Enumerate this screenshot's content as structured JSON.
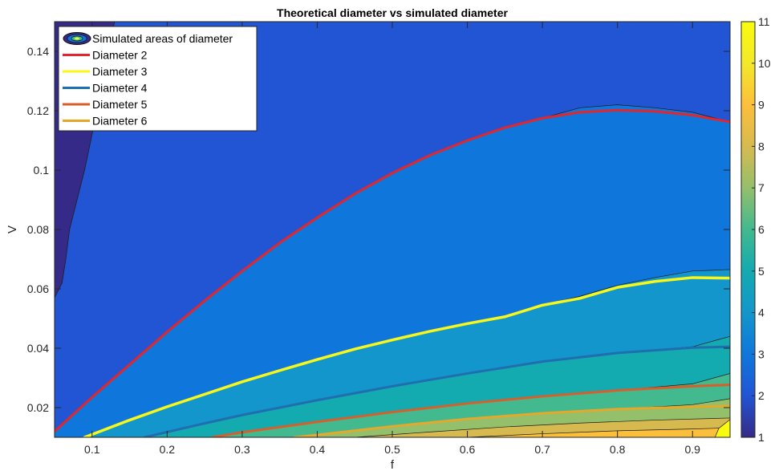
{
  "chart_data": {
    "type": "contour",
    "title": "Theoretical diameter vs simulated diameter",
    "xlabel": "f",
    "ylabel": "V",
    "xlim": [
      0.05,
      0.95
    ],
    "ylim": [
      0.01,
      0.15
    ],
    "x_ticks": [
      0.1,
      0.2,
      0.3,
      0.4,
      0.5,
      0.6,
      0.7,
      0.8,
      0.9
    ],
    "y_ticks": [
      0.02,
      0.04,
      0.06,
      0.08,
      0.1,
      0.12,
      0.14
    ],
    "colorbar": {
      "min": 1,
      "max": 11,
      "ticks": [
        1,
        2,
        3,
        4,
        5,
        6,
        7,
        8,
        9,
        10,
        11
      ],
      "colormap": "parula",
      "stops": [
        "#352a87",
        "#2155d4",
        "#0f77db",
        "#1396cc",
        "#13aab0",
        "#42b98e",
        "#94bf6b",
        "#d7ba4f",
        "#fcbf3c",
        "#f3e829",
        "#f9fb0e"
      ]
    },
    "legend": {
      "placement": "top-left",
      "entries": [
        "Simulated areas of diameter",
        "Diameter 2",
        "Diameter 3",
        "Diameter 4",
        "Diameter 5",
        "Diameter 6"
      ]
    },
    "series": [
      {
        "name": "Diameter 2",
        "color": "#e2262b",
        "x": [
          0.05,
          0.1,
          0.15,
          0.2,
          0.25,
          0.3,
          0.35,
          0.4,
          0.45,
          0.5,
          0.55,
          0.6,
          0.65,
          0.7,
          0.75,
          0.8,
          0.85,
          0.9,
          0.95
        ],
        "y": [
          0.012,
          0.0235,
          0.0345,
          0.0455,
          0.056,
          0.066,
          0.0755,
          0.084,
          0.092,
          0.099,
          0.105,
          0.11,
          0.1143,
          0.1175,
          0.1195,
          0.1202,
          0.1198,
          0.1185,
          0.1162
        ]
      },
      {
        "name": "Diameter 3",
        "color": "#f7f71c",
        "x": [
          0.09,
          0.15,
          0.2,
          0.25,
          0.3,
          0.35,
          0.4,
          0.45,
          0.5,
          0.55,
          0.6,
          0.65,
          0.7,
          0.75,
          0.8,
          0.85,
          0.9,
          0.95
        ],
        "y": [
          0.01,
          0.0158,
          0.0203,
          0.0245,
          0.0287,
          0.0325,
          0.0362,
          0.0397,
          0.0428,
          0.0457,
          0.0483,
          0.0506,
          0.0545,
          0.0568,
          0.0605,
          0.0625,
          0.0638,
          0.0636
        ]
      },
      {
        "name": "Diameter 4",
        "color": "#1f6fb0",
        "x": [
          0.17,
          0.25,
          0.3,
          0.4,
          0.5,
          0.6,
          0.7,
          0.8,
          0.9,
          0.95
        ],
        "y": [
          0.01,
          0.0147,
          0.0175,
          0.0225,
          0.0272,
          0.0315,
          0.0355,
          0.0384,
          0.0402,
          0.0405
        ]
      },
      {
        "name": "Diameter 5",
        "color": "#d65f2b",
        "x": [
          0.26,
          0.3,
          0.4,
          0.5,
          0.6,
          0.7,
          0.8,
          0.9,
          0.95
        ],
        "y": [
          0.01,
          0.0117,
          0.0152,
          0.0185,
          0.0214,
          0.0238,
          0.0258,
          0.0272,
          0.0277
        ]
      },
      {
        "name": "Diameter 6",
        "color": "#e6a82b",
        "x": [
          0.37,
          0.4,
          0.5,
          0.6,
          0.7,
          0.8,
          0.9,
          0.95
        ],
        "y": [
          0.01,
          0.0108,
          0.0137,
          0.0162,
          0.0181,
          0.0195,
          0.0203,
          0.0205
        ]
      }
    ],
    "regions": [
      {
        "level": 1,
        "color": "#352a87",
        "boundary_x": [
          0.05,
          0.05,
          0.06,
          0.065,
          0.07,
          0.08,
          0.09,
          0.1,
          0.11,
          0.12,
          0.13
        ],
        "boundary_y": [
          0.048,
          0.057,
          0.062,
          0.07,
          0.08,
          0.09,
          0.1,
          0.112,
          0.125,
          0.138,
          0.15
        ]
      },
      {
        "level": 3,
        "color": "#0f77db",
        "boundary_x": [
          0.05,
          0.1,
          0.15,
          0.2,
          0.25,
          0.3,
          0.35,
          0.4,
          0.45,
          0.5,
          0.55,
          0.6,
          0.65,
          0.7,
          0.75,
          0.8,
          0.85,
          0.9,
          0.95
        ],
        "boundary_y": [
          0.012,
          0.0235,
          0.0345,
          0.0455,
          0.056,
          0.066,
          0.0755,
          0.084,
          0.092,
          0.099,
          0.105,
          0.11,
          0.1143,
          0.1175,
          0.121,
          0.122,
          0.121,
          0.1195,
          0.1162
        ]
      },
      {
        "level": 4,
        "color": "#1396cc",
        "boundary_x": [
          0.09,
          0.15,
          0.2,
          0.25,
          0.3,
          0.35,
          0.4,
          0.45,
          0.5,
          0.55,
          0.6,
          0.65,
          0.7,
          0.75,
          0.8,
          0.85,
          0.9,
          0.95
        ],
        "boundary_y": [
          0.01,
          0.0158,
          0.0203,
          0.0245,
          0.0287,
          0.0325,
          0.0362,
          0.0397,
          0.0428,
          0.0457,
          0.0483,
          0.0506,
          0.0545,
          0.0575,
          0.0612,
          0.0638,
          0.066,
          0.0665
        ]
      },
      {
        "level": 5,
        "color": "#13aab0",
        "boundary_x": [
          0.17,
          0.25,
          0.3,
          0.4,
          0.5,
          0.6,
          0.7,
          0.8,
          0.9,
          0.95
        ],
        "boundary_y": [
          0.01,
          0.0147,
          0.0175,
          0.0225,
          0.0272,
          0.0315,
          0.0355,
          0.0385,
          0.0405,
          0.044
        ]
      },
      {
        "level": 6,
        "color": "#42b98e",
        "boundary_x": [
          0.26,
          0.3,
          0.4,
          0.5,
          0.6,
          0.7,
          0.8,
          0.9,
          0.95
        ],
        "boundary_y": [
          0.01,
          0.0117,
          0.0152,
          0.0185,
          0.0214,
          0.0238,
          0.0258,
          0.028,
          0.0315
        ]
      },
      {
        "level": 7,
        "color": "#94bf6b",
        "boundary_x": [
          0.37,
          0.4,
          0.5,
          0.6,
          0.7,
          0.8,
          0.9,
          0.95
        ],
        "boundary_y": [
          0.01,
          0.0108,
          0.0137,
          0.0162,
          0.0181,
          0.0195,
          0.021,
          0.023
        ]
      },
      {
        "level": 8,
        "color": "#d7ba4f",
        "boundary_x": [
          0.45,
          0.55,
          0.65,
          0.75,
          0.85,
          0.95
        ],
        "boundary_y": [
          0.01,
          0.0118,
          0.0135,
          0.0148,
          0.0158,
          0.0165
        ]
      },
      {
        "level": 9,
        "color": "#fcbf3c",
        "boundary_x": [
          0.6,
          0.7,
          0.8,
          0.9,
          0.95
        ],
        "boundary_y": [
          0.01,
          0.0112,
          0.0122,
          0.0128,
          0.0132
        ]
      },
      {
        "level": 11,
        "color": "#f9fb0e",
        "boundary_x": [
          0.93,
          0.935,
          0.95
        ],
        "boundary_y": [
          0.01,
          0.013,
          0.016
        ]
      }
    ]
  }
}
